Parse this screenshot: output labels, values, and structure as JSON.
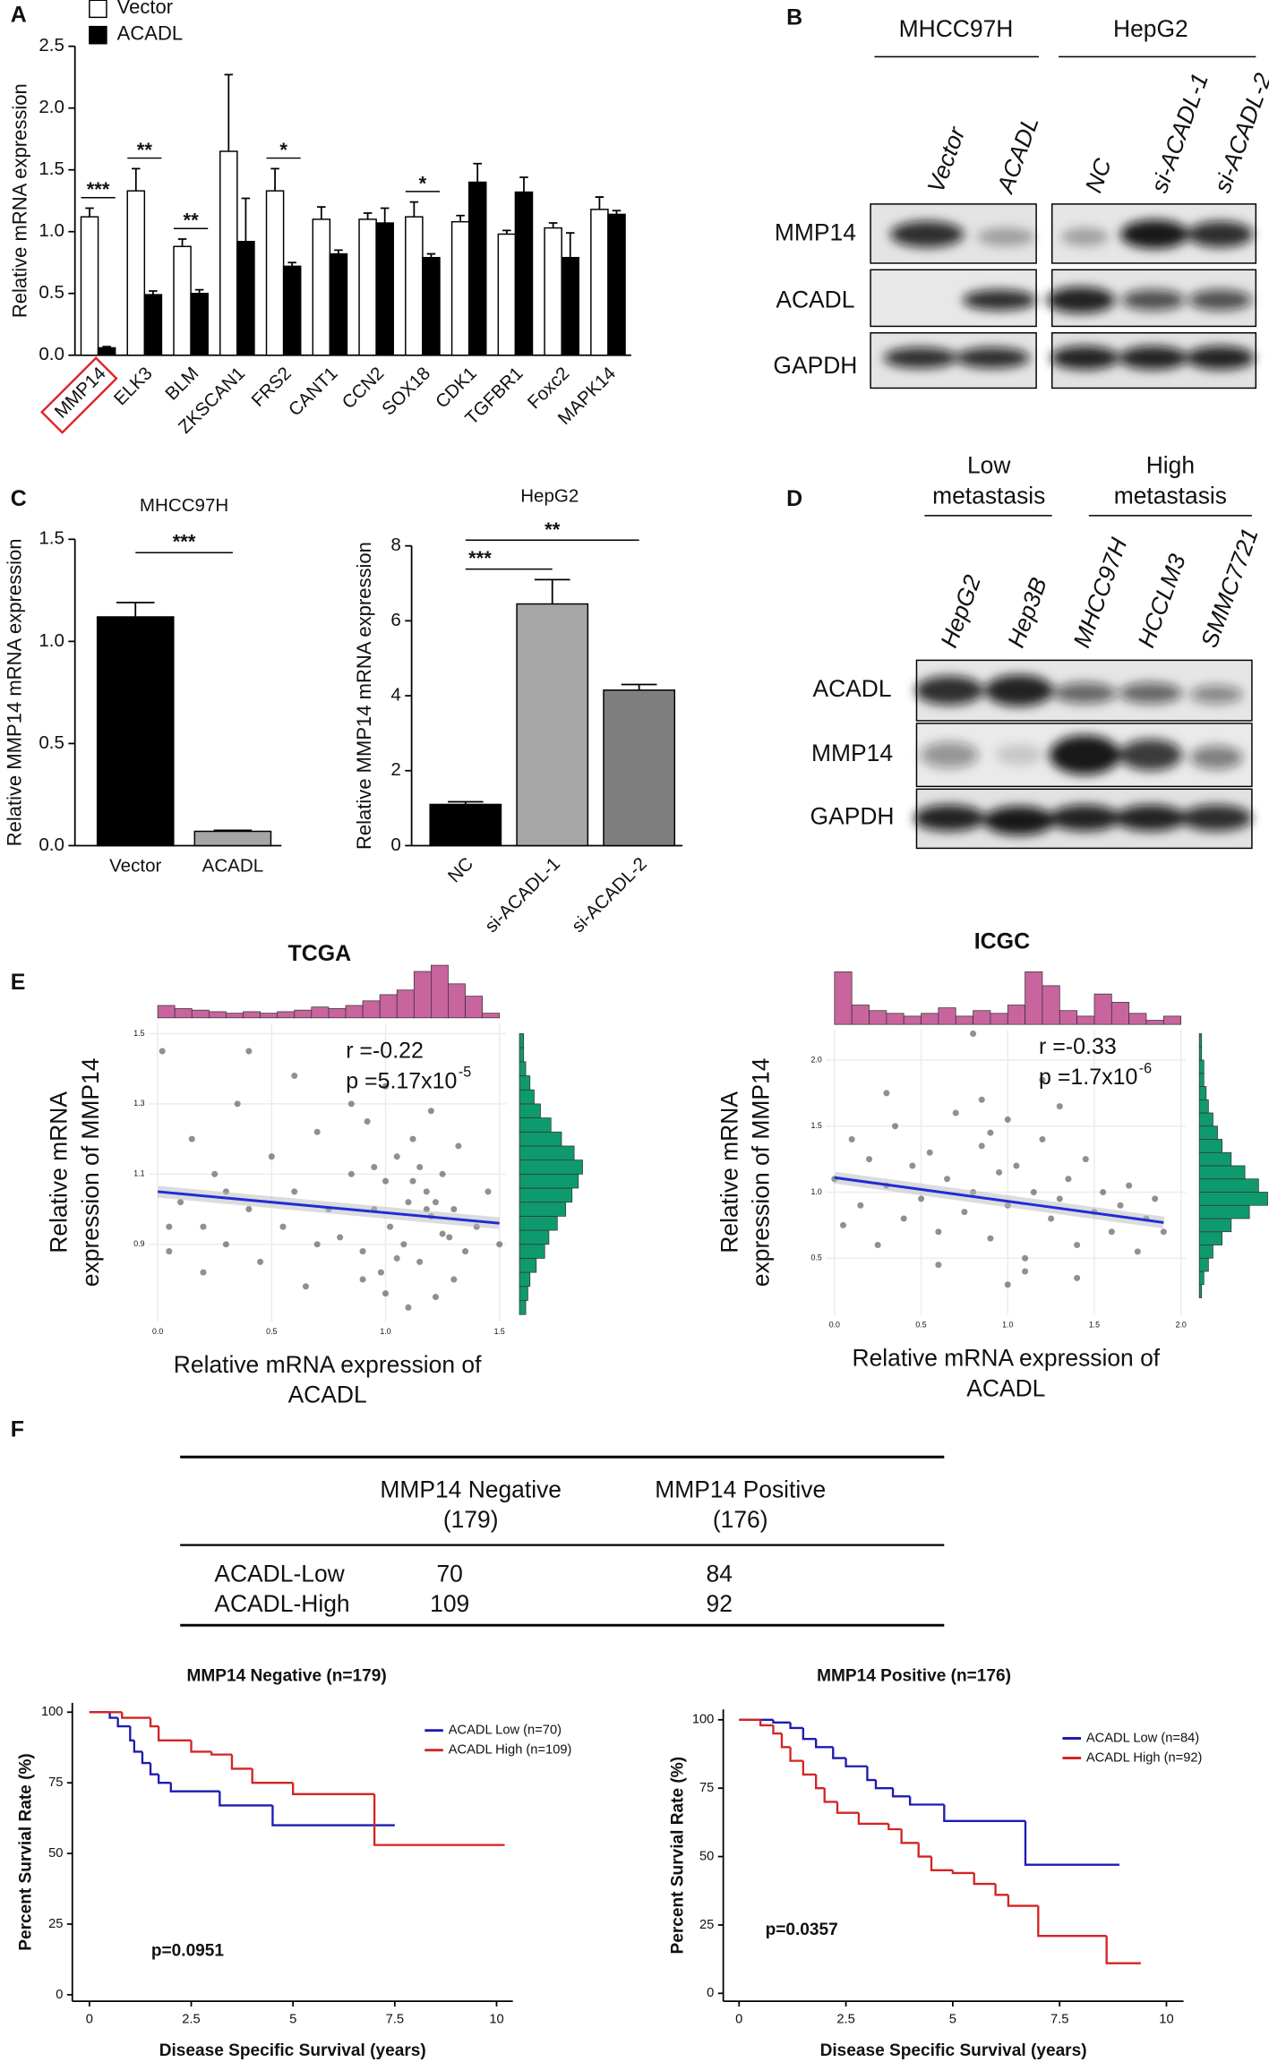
{
  "panel_labels": [
    "A",
    "B",
    "C",
    "D",
    "E",
    "F"
  ],
  "chart_data": [
    {
      "type": "bar",
      "ylabel": "Relative mRNA expression",
      "categories": [
        "MMP14",
        "ELK3",
        "BLM",
        "ZKSCAN1",
        "FRS2",
        "CANT1",
        "CCN2",
        "SOX18",
        "CDK1",
        "TGFBR1",
        "Foxc2",
        "MAPK14"
      ],
      "series": [
        {
          "name": "Vector",
          "color": "#ffffff",
          "values": [
            1.12,
            1.33,
            0.88,
            1.65,
            1.33,
            1.1,
            1.1,
            1.12,
            1.08,
            0.98,
            1.03,
            1.18
          ],
          "errors": [
            0.07,
            0.18,
            0.06,
            0.62,
            0.18,
            0.1,
            0.05,
            0.12,
            0.05,
            0.03,
            0.04,
            0.1
          ]
        },
        {
          "name": "ACADL",
          "color": "#000000",
          "values": [
            0.06,
            0.49,
            0.5,
            0.92,
            0.72,
            0.82,
            1.07,
            0.79,
            1.4,
            1.32,
            0.79,
            1.14
          ],
          "errors": [
            0.01,
            0.03,
            0.03,
            0.35,
            0.03,
            0.03,
            0.12,
            0.03,
            0.15,
            0.12,
            0.2,
            0.03
          ]
        }
      ],
      "ylim": [
        0,
        2.5
      ],
      "yticks": [
        {
          "value": 0,
          "label": "0.0"
        },
        0.5,
        {
          "value": 1,
          "label": "1.0"
        },
        1.5,
        {
          "value": 2,
          "label": "2.0"
        },
        2.5
      ],
      "annotations": [
        {
          "text": "***",
          "category": "MMP14"
        },
        {
          "text": "**",
          "category": "ELK3"
        },
        {
          "text": "**",
          "category": "BLM"
        },
        {
          "text": "*",
          "category": "FRS2"
        },
        {
          "text": "*",
          "category": "SOX18"
        }
      ]
    },
    {
      "type": "bar",
      "title": "MHCC97H",
      "ylabel": "Relative MMP14 mRNA expression",
      "categories": [
        "Vector",
        "ACADL"
      ],
      "values": [
        1.12,
        0.07
      ],
      "errors": [
        0.07,
        0.005
      ],
      "colors": [
        "#000000",
        "#a6a6a6"
      ],
      "ylim": [
        0,
        1.5
      ],
      "yticks": [
        {
          "value": 0,
          "label": "0.0"
        },
        0.5,
        {
          "value": 1,
          "label": "1.0"
        },
        1.5
      ],
      "annotations": [
        {
          "text": "***",
          "between": [
            "Vector",
            "ACADL"
          ]
        }
      ]
    },
    {
      "type": "bar",
      "title": "HepG2",
      "ylabel": "Relative MMP14 mRNA expression",
      "categories": [
        "NC",
        "si-ACADL-1",
        "si-ACADL-2"
      ],
      "values": [
        1.1,
        6.45,
        4.15
      ],
      "errors": [
        0.07,
        0.65,
        0.15
      ],
      "colors": [
        "#000000",
        "#a6a6a6",
        "#7f7f7f"
      ],
      "ylim": [
        0,
        8
      ],
      "yticks": [
        0,
        2,
        4,
        6,
        8
      ],
      "annotations": [
        {
          "text": "***",
          "between": [
            "NC",
            "si-ACADL-1"
          ]
        },
        {
          "text": "**",
          "between": [
            "NC",
            "si-ACADL-2"
          ]
        }
      ]
    },
    {
      "type": "scatter",
      "title": "TCGA",
      "r": "r =-0.22",
      "p": "p =5.17x10",
      "p_exponent": "-5",
      "ylabel": [
        "Relative mRNA",
        "expression of MMP14"
      ],
      "xlabel": [
        "Relative mRNA expression of",
        "ACADL"
      ],
      "x": [
        0.02,
        0.05,
        0.1,
        0.15,
        0.2,
        0.25,
        0.3,
        0.35,
        0.4,
        0.45,
        0.5,
        0.55,
        0.6,
        0.65,
        0.7,
        0.75,
        0.8,
        0.85,
        0.9,
        0.92,
        0.95,
        0.98,
        1.0,
        1.02,
        1.05,
        1.08,
        1.1,
        1.12,
        1.15,
        1.18,
        1.2,
        1.22,
        1.25,
        1.28,
        1.3,
        1.32,
        1.35,
        1.4,
        1.45,
        1.5,
        0.85,
        0.9,
        1.0,
        1.1,
        1.15,
        1.2,
        1.25,
        0.3,
        0.6,
        0.2,
        1.05,
        1.18,
        0.95,
        0.7,
        1.3,
        0.4,
        1.12,
        1.22,
        0.05,
        1.0
      ],
      "y": [
        1.45,
        0.95,
        1.02,
        1.2,
        0.82,
        1.1,
        0.9,
        1.3,
        1.0,
        0.85,
        1.15,
        0.95,
        1.05,
        0.78,
        1.22,
        1.0,
        0.92,
        1.1,
        0.88,
        1.25,
        1.0,
        0.82,
        1.08,
        0.95,
        1.15,
        0.9,
        1.02,
        1.2,
        0.85,
        1.05,
        0.98,
        0.75,
        1.1,
        0.92,
        1.0,
        1.18,
        0.88,
        0.95,
        1.05,
        0.9,
        1.3,
        0.8,
        1.35,
        0.72,
        1.12,
        1.28,
        0.93,
        1.05,
        1.38,
        0.95,
        0.86,
        1.0,
        1.12,
        0.9,
        0.8,
        1.45,
        1.08,
        1.02,
        0.88,
        0.76
      ],
      "fit": {
        "x": [
          0,
          1.5
        ],
        "y": [
          1.05,
          0.96
        ]
      },
      "point_color": "#555555",
      "fit_color": "#1f2bd6",
      "x_hist": {
        "color": "#c8649e",
        "bins": [
          0,
          0.075,
          0.15,
          0.225,
          0.3,
          0.375,
          0.45,
          0.525,
          0.6,
          0.675,
          0.75,
          0.825,
          0.9,
          0.975,
          1.05,
          1.125,
          1.2,
          1.275,
          1.35,
          1.425,
          1.5
        ],
        "counts": [
          8,
          6,
          5,
          4,
          3,
          4,
          3,
          4,
          5,
          7,
          6,
          8,
          11,
          15,
          18,
          30,
          34,
          22,
          14,
          3
        ]
      },
      "y_hist": {
        "color": "#0f9a6e",
        "bins": [
          0.7,
          0.74,
          0.78,
          0.82,
          0.86,
          0.9,
          0.94,
          0.98,
          1.02,
          1.06,
          1.1,
          1.14,
          1.18,
          1.22,
          1.26,
          1.3,
          1.34,
          1.38,
          1.42,
          1.46,
          1.5
        ],
        "counts": [
          3,
          4,
          5,
          8,
          12,
          14,
          18,
          22,
          25,
          28,
          30,
          26,
          20,
          15,
          10,
          7,
          5,
          3,
          2,
          2
        ]
      },
      "xlim": [
        -0.04,
        1.53
      ],
      "ylim": [
        0.68,
        1.53
      ],
      "xticks": [
        {
          "value": 0,
          "label": "0.0"
        },
        0.5,
        {
          "value": 1,
          "label": "1.0"
        },
        1.5
      ],
      "yticks": [
        0.9,
        1.1,
        1.3,
        1.5
      ],
      "grid": true
    },
    {
      "type": "scatter",
      "title": "ICGC",
      "r": "r =-0.33",
      "p": "p =1.7x10",
      "p_exponent": "-6",
      "ylabel": [
        "Relative mRNA",
        "expression of MMP14"
      ],
      "xlabel": [
        "Relative mRNA expression of",
        "ACADL"
      ],
      "x": [
        0.0,
        0.05,
        0.1,
        0.15,
        0.2,
        0.25,
        0.3,
        0.35,
        0.4,
        0.45,
        0.5,
        0.55,
        0.6,
        0.65,
        0.7,
        0.75,
        0.8,
        0.85,
        0.9,
        0.95,
        1.0,
        1.05,
        1.1,
        1.15,
        1.2,
        1.25,
        1.3,
        1.35,
        1.4,
        1.45,
        1.5,
        1.55,
        1.6,
        1.65,
        1.7,
        1.75,
        1.8,
        1.85,
        1.9,
        0.8,
        0.85,
        1.0,
        1.1,
        0.3,
        0.6,
        1.2,
        1.4,
        0.9,
        1.3,
        1.0
      ],
      "y": [
        1.1,
        0.75,
        1.4,
        0.9,
        1.25,
        0.6,
        1.05,
        1.5,
        0.8,
        1.2,
        0.95,
        1.3,
        0.7,
        1.1,
        1.6,
        0.85,
        1.0,
        1.35,
        0.65,
        1.15,
        0.9,
        1.2,
        0.5,
        1.0,
        1.4,
        0.8,
        0.95,
        1.1,
        0.6,
        1.25,
        0.85,
        1.0,
        0.7,
        0.9,
        1.05,
        0.55,
        0.8,
        0.95,
        0.7,
        2.2,
        1.7,
        1.55,
        0.4,
        1.75,
        0.45,
        1.85,
        0.35,
        1.45,
        1.65,
        0.3
      ],
      "fit": {
        "x": [
          0,
          1.9
        ],
        "y": [
          1.11,
          0.77
        ]
      },
      "point_color": "#555555",
      "fit_color": "#1f2bd6",
      "x_hist": {
        "color": "#c8649e",
        "bins": [
          0,
          0.1,
          0.2,
          0.3,
          0.4,
          0.5,
          0.6,
          0.7,
          0.8,
          0.9,
          1.0,
          1.1,
          1.2,
          1.3,
          1.4,
          1.5,
          1.6,
          1.7,
          1.8,
          1.9,
          2.0
        ],
        "counts": [
          38,
          14,
          10,
          8,
          6,
          8,
          12,
          6,
          10,
          8,
          14,
          38,
          28,
          10,
          6,
          22,
          16,
          8,
          3,
          6
        ]
      },
      "y_hist": {
        "color": "#0f9a6e",
        "bins": [
          0.2,
          0.3,
          0.4,
          0.5,
          0.6,
          0.7,
          0.8,
          0.9,
          1.0,
          1.1,
          1.2,
          1.3,
          1.4,
          1.5,
          1.6,
          1.7,
          1.8,
          1.9,
          2.0,
          2.1,
          2.2
        ],
        "counts": [
          1,
          2,
          4,
          6,
          10,
          14,
          22,
          30,
          26,
          20,
          14,
          10,
          8,
          6,
          4,
          3,
          2,
          2,
          1,
          1
        ]
      },
      "xlim": [
        -0.05,
        2.03
      ],
      "ylim": [
        0.07,
        2.23
      ],
      "xticks": [
        {
          "value": 0,
          "label": "0.0"
        },
        0.5,
        {
          "value": 1,
          "label": "1.0"
        },
        1.5,
        {
          "value": 2,
          "label": "2.0"
        }
      ],
      "yticks": [
        0.5,
        {
          "value": 1,
          "label": "1.0"
        },
        1.5,
        {
          "value": 2,
          "label": "2.0"
        }
      ],
      "grid": true
    },
    {
      "type": "survival",
      "title": "MMP14 Negative (n=179)",
      "xlabel": "Disease Specific Survival (years)",
      "ylabel": "Percent Survial Rate (%)",
      "annotation": "p=0.0951",
      "legend": "upper right",
      "series": [
        {
          "name": "ACADL Low (n=70)",
          "color": "#1c1cb0",
          "x": [
            0,
            0.5,
            0.7,
            1,
            1.1,
            1.3,
            1.5,
            1.7,
            2.0,
            3.2,
            4.5,
            7.5
          ],
          "values": [
            100,
            98,
            95,
            90,
            86,
            82,
            78,
            75,
            72,
            67,
            60,
            60
          ]
        },
        {
          "name": "ACADL High (n=109)",
          "color": "#d42424",
          "x": [
            0,
            0.8,
            1.5,
            1.7,
            2.5,
            3,
            3.5,
            4,
            5,
            7,
            10.2
          ],
          "values": [
            100,
            98,
            95,
            90,
            86,
            85,
            80,
            75,
            71,
            53,
            53
          ]
        }
      ],
      "xlim": [
        -0.42,
        10.4
      ],
      "ylim": [
        -2.3,
        103.3
      ],
      "xticks": [
        0,
        2.5,
        5,
        7.5,
        10
      ],
      "yticks": [
        0,
        25,
        50,
        75,
        100
      ]
    },
    {
      "type": "survival",
      "title": "MMP14 Positive (n=176)",
      "xlabel": "Disease Specific Survival (years)",
      "ylabel": "Percent Survial Rate (%)",
      "annotation": "p=0.0357",
      "legend": "upper right",
      "series": [
        {
          "name": "ACADL Low (n=84)",
          "color": "#1c1cb0",
          "x": [
            0,
            0.8,
            1.2,
            1.5,
            1.8,
            2.2,
            2.5,
            3,
            3.2,
            3.6,
            4,
            4.8,
            6.7,
            8.9
          ],
          "values": [
            100,
            99,
            97,
            93,
            90,
            86,
            83,
            78,
            75,
            72,
            69,
            63,
            47,
            47
          ]
        },
        {
          "name": "ACADL High (n=92)",
          "color": "#d42424",
          "x": [
            0,
            0.5,
            0.8,
            1,
            1.2,
            1.5,
            1.8,
            2,
            2.3,
            2.8,
            3.5,
            3.8,
            4.2,
            4.5,
            5,
            5.5,
            6,
            6.3,
            7,
            8.6,
            9.4
          ],
          "values": [
            100,
            98,
            95,
            90,
            85,
            80,
            75,
            70,
            66,
            62,
            60,
            55,
            50,
            45,
            44,
            40,
            36,
            32,
            21,
            11,
            11
          ]
        }
      ],
      "xlim": [
        -0.37,
        10.4
      ],
      "ylim": [
        -2.9,
        103.8
      ],
      "xticks": [
        0,
        2.5,
        5,
        7.5,
        10
      ],
      "yticks": [
        0,
        25,
        50,
        75,
        100
      ]
    }
  ],
  "blots": [
    {
      "groups": [
        [
          "MHCC97H"
        ],
        [
          "HepG2"
        ]
      ],
      "lanes": [
        "Vector",
        "ACADL",
        "NC",
        "si-ACADL-1",
        "si-ACADL-2"
      ],
      "rows": [
        "MMP14",
        "ACADL",
        "GAPDH"
      ]
    },
    {
      "groups": [
        [
          "Low",
          "metastasis"
        ],
        [
          "High",
          "metastasis"
        ]
      ],
      "lanes": [
        "HepG2",
        "Hep3B",
        "MHCC97H",
        "HCCLM3",
        "SMMC7721"
      ],
      "rows": [
        "ACADL",
        "MMP14",
        "GAPDH"
      ]
    }
  ],
  "table": {
    "columns": [
      [
        "MMP14 Negative",
        "(179)"
      ],
      [
        "MMP14 Positive",
        "(176)"
      ]
    ],
    "rows": [
      [
        "ACADL-Low",
        70,
        84
      ],
      [
        "ACADL-High",
        109,
        92
      ]
    ]
  }
}
